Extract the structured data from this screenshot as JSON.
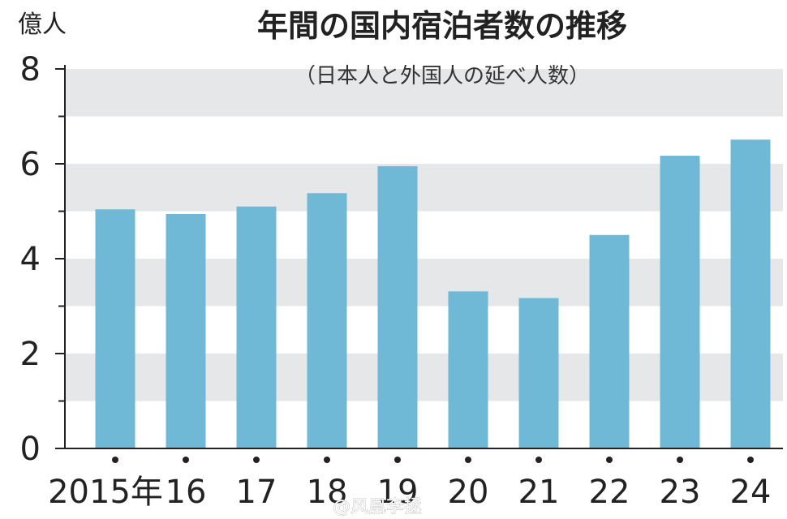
{
  "chart_data": {
    "type": "bar",
    "title": "年間の国内宿泊者数の推移",
    "subtitle": "（日本人と外国人の延べ人数）",
    "ylabel": "億人",
    "xlabel": "",
    "categories": [
      "2015年",
      "16",
      "17",
      "18",
      "19",
      "20",
      "21",
      "22",
      "23",
      "24"
    ],
    "values": [
      5.04,
      4.94,
      5.1,
      5.38,
      5.95,
      3.31,
      3.17,
      4.5,
      6.17,
      6.51
    ],
    "ylim": [
      0,
      8
    ],
    "yticks": [
      "0",
      "2",
      "4",
      "6",
      "8"
    ],
    "grid": "alternating horizontal bands",
    "colors": {
      "bar": "#6FB8D6",
      "band": "#E6E7E8",
      "axis": "#222222"
    }
  },
  "watermark": "@风凰李拯"
}
